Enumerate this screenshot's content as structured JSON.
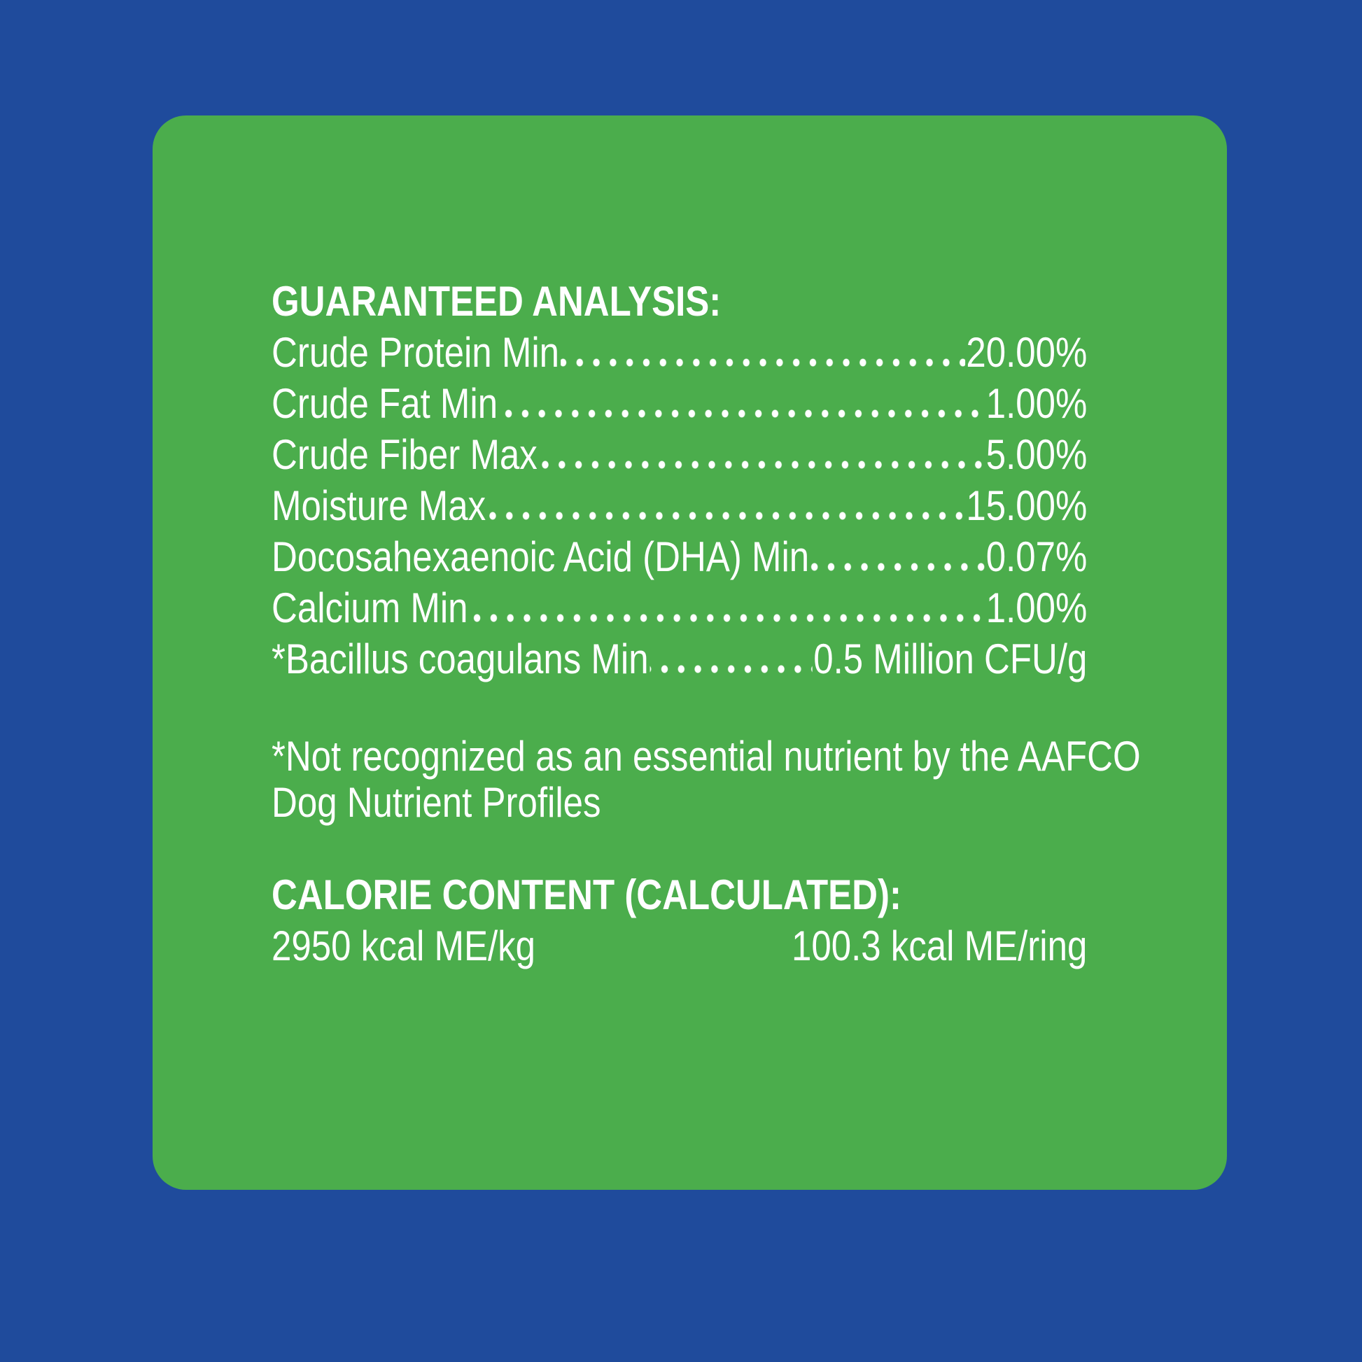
{
  "page": {
    "bg_color": "#1f4b9c",
    "panel_color": "#4bad4c",
    "text_color": "#ffffff"
  },
  "guaranteed_analysis": {
    "heading": "GUARANTEED ANALYSIS:",
    "rows": [
      {
        "label": "Crude Protein Min",
        "value": "20.00%"
      },
      {
        "label": "Crude Fat Min",
        "value": "1.00%"
      },
      {
        "label": "Crude Fiber Max",
        "value": "5.00%"
      },
      {
        "label": "Moisture Max",
        "value": "15.00%"
      },
      {
        "label": "Docosahexaenoic Acid (DHA) Min",
        "value": "0.07%"
      },
      {
        "label": "Calcium Min",
        "value": "1.00%"
      },
      {
        "label": "*Bacillus coagulans Min",
        "value": "0.5 Million CFU/g"
      }
    ]
  },
  "footnote": {
    "line1": "*Not recognized as an essential nutrient by the AAFCO",
    "line2": "Dog Nutrient Profiles"
  },
  "calorie_content": {
    "heading": "CALORIE CONTENT (CALCULATED):",
    "per_kg": "2950 kcal ME/kg",
    "per_ring": "100.3 kcal ME/ring"
  }
}
